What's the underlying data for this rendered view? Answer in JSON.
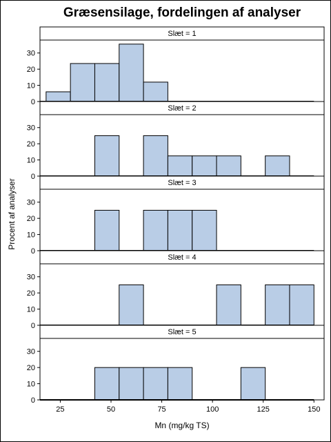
{
  "title": "Græsensilage, fordelingen af analyser",
  "colors": {
    "bar_fill": "#b9cde6",
    "bar_stroke": "#000000",
    "strip_fill": "#ffffff"
  },
  "chart_data": {
    "type": "bar",
    "title": "Græsensilage, fordelingen af analyser",
    "xlabel": "Mn (mg/kg TS)",
    "ylabel": "Procent af analyser",
    "xlim": [
      15,
      155
    ],
    "xticks": [
      25,
      50,
      75,
      100,
      125,
      150
    ],
    "ylim": [
      0,
      38
    ],
    "yticks": [
      0,
      10,
      20,
      30
    ],
    "bin_width": 12,
    "grid": false,
    "panels": [
      {
        "label": "Slæt = 1",
        "bins": [
          {
            "x0": 18,
            "x1": 30,
            "value": 6
          },
          {
            "x0": 30,
            "x1": 42,
            "value": 23.5
          },
          {
            "x0": 42,
            "x1": 54,
            "value": 23.5
          },
          {
            "x0": 54,
            "x1": 66,
            "value": 35.5
          },
          {
            "x0": 66,
            "x1": 78,
            "value": 12
          }
        ]
      },
      {
        "label": "Slæt = 2",
        "bins": [
          {
            "x0": 42,
            "x1": 54,
            "value": 25
          },
          {
            "x0": 66,
            "x1": 78,
            "value": 25
          },
          {
            "x0": 78,
            "x1": 90,
            "value": 12.5
          },
          {
            "x0": 90,
            "x1": 102,
            "value": 12.5
          },
          {
            "x0": 102,
            "x1": 114,
            "value": 12.5
          },
          {
            "x0": 126,
            "x1": 138,
            "value": 12.5
          }
        ]
      },
      {
        "label": "Slæt = 3",
        "bins": [
          {
            "x0": 42,
            "x1": 54,
            "value": 25
          },
          {
            "x0": 66,
            "x1": 78,
            "value": 25
          },
          {
            "x0": 78,
            "x1": 90,
            "value": 25
          },
          {
            "x0": 90,
            "x1": 102,
            "value": 25
          }
        ]
      },
      {
        "label": "Slæt = 4",
        "bins": [
          {
            "x0": 54,
            "x1": 66,
            "value": 25
          },
          {
            "x0": 102,
            "x1": 114,
            "value": 25
          },
          {
            "x0": 126,
            "x1": 138,
            "value": 25
          },
          {
            "x0": 138,
            "x1": 150,
            "value": 25
          }
        ]
      },
      {
        "label": "Slæt = 5",
        "bins": [
          {
            "x0": 42,
            "x1": 54,
            "value": 20
          },
          {
            "x0": 54,
            "x1": 66,
            "value": 20
          },
          {
            "x0": 66,
            "x1": 78,
            "value": 20
          },
          {
            "x0": 78,
            "x1": 90,
            "value": 20
          },
          {
            "x0": 114,
            "x1": 126,
            "value": 20
          }
        ]
      }
    ]
  }
}
